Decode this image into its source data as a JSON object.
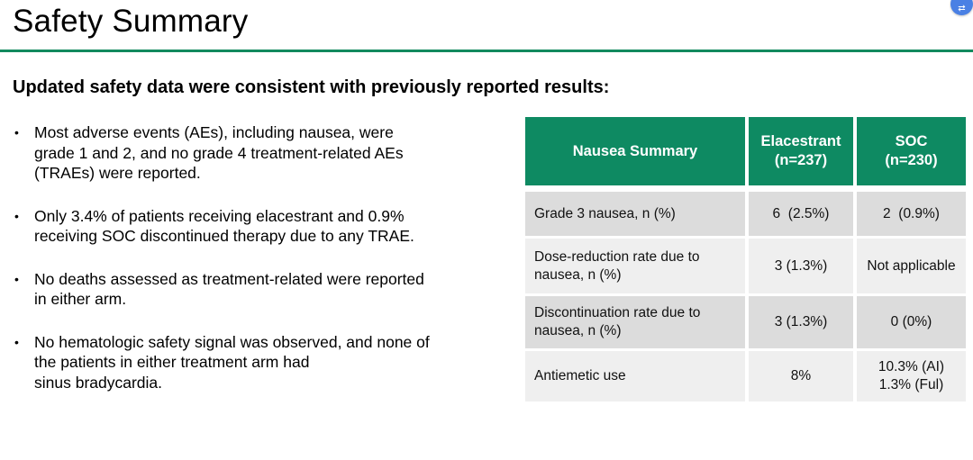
{
  "header": {
    "title": "Safety Summary"
  },
  "floating_button": {
    "icon": "translate-icon",
    "glyph": "⇄",
    "color": "#4a80e4"
  },
  "content": {
    "subtitle": "Updated safety data were consistent with previously reported results:",
    "bullets": [
      "Most adverse events (AEs), including nausea, were\ngrade 1 and 2, and no grade 4 treatment-related AEs\n(TRAEs) were reported.",
      "Only 3.4% of patients receiving elacestrant and 0.9%\nreceiving SOC discontinued therapy due to any TRAE.",
      "No deaths assessed as treatment-related were reported\nin either arm.",
      "No hematologic safety signal was observed, and none of\nthe patients in either treatment arm had\nsinus bradycardia."
    ]
  },
  "table": {
    "headers": {
      "col1": "Nausea Summary",
      "col2": "Elacestrant\n(n=237)",
      "col3": "SOC\n(n=230)"
    },
    "rows": [
      {
        "label": "Grade 3 nausea, n (%)",
        "elacestrant": "6  (2.5%)",
        "soc": "2  (0.9%)"
      },
      {
        "label": "Dose-reduction rate due to\nnausea, n (%)",
        "elacestrant": "3 (1.3%)",
        "soc": "Not applicable"
      },
      {
        "label": "Discontinuation rate due to\nnausea, n (%)",
        "elacestrant": "3 (1.3%)",
        "soc": "0 (0%)"
      },
      {
        "label": "Antiemetic use",
        "elacestrant": "8%",
        "soc": "10.3% (AI)\n1.3% (Ful)"
      }
    ]
  },
  "colors": {
    "header_green": "#0e8a62",
    "underline_green": "#128a5e",
    "row_dark": "#dcdcdc",
    "row_light": "#efefef",
    "header_text": "#ffffff"
  }
}
